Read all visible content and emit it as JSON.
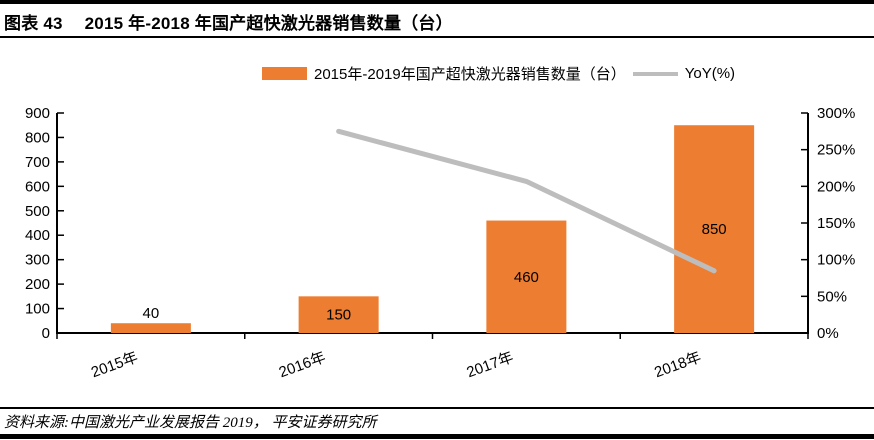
{
  "header": {
    "figure_label": "图表 43",
    "title": "2015 年-2018 年国产超快激光器销售数量（台）"
  },
  "legend": {
    "bar_label": "2015年-2019年国产超快激光器销售数量（台）",
    "line_label": "YoY(%)"
  },
  "footer": {
    "source": "资料来源:中国激光产业发展报告 2019， 平安证券研究所"
  },
  "colors": {
    "bar": "#ED7D31",
    "line": "#BDBDBD",
    "axis": "#000000",
    "text": "#000000"
  },
  "chart_data": {
    "type": "bar",
    "subtype": "combo-bar-line-dual-axis",
    "categories": [
      "2015年",
      "2016年",
      "2017年",
      "2018年"
    ],
    "series": [
      {
        "name": "2015年-2019年国产超快激光器销售数量（台）",
        "type": "bar",
        "axis": "left",
        "values": [
          40,
          150,
          460,
          850
        ],
        "data_labels": [
          "40",
          "150",
          "460",
          "850"
        ]
      },
      {
        "name": "YoY(%)",
        "type": "line",
        "axis": "right",
        "values": [
          null,
          275,
          206.7,
          84.8
        ]
      }
    ],
    "left_axis": {
      "min": 0,
      "max": 900,
      "step": 100,
      "ticks": [
        "0",
        "100",
        "200",
        "300",
        "400",
        "500",
        "600",
        "700",
        "800",
        "900"
      ]
    },
    "right_axis": {
      "min": 0,
      "max": 300,
      "step": 50,
      "ticks": [
        "0%",
        "50%",
        "100%",
        "150%",
        "200%",
        "250%",
        "300%"
      ]
    },
    "grid": false,
    "legend_position": "top"
  }
}
